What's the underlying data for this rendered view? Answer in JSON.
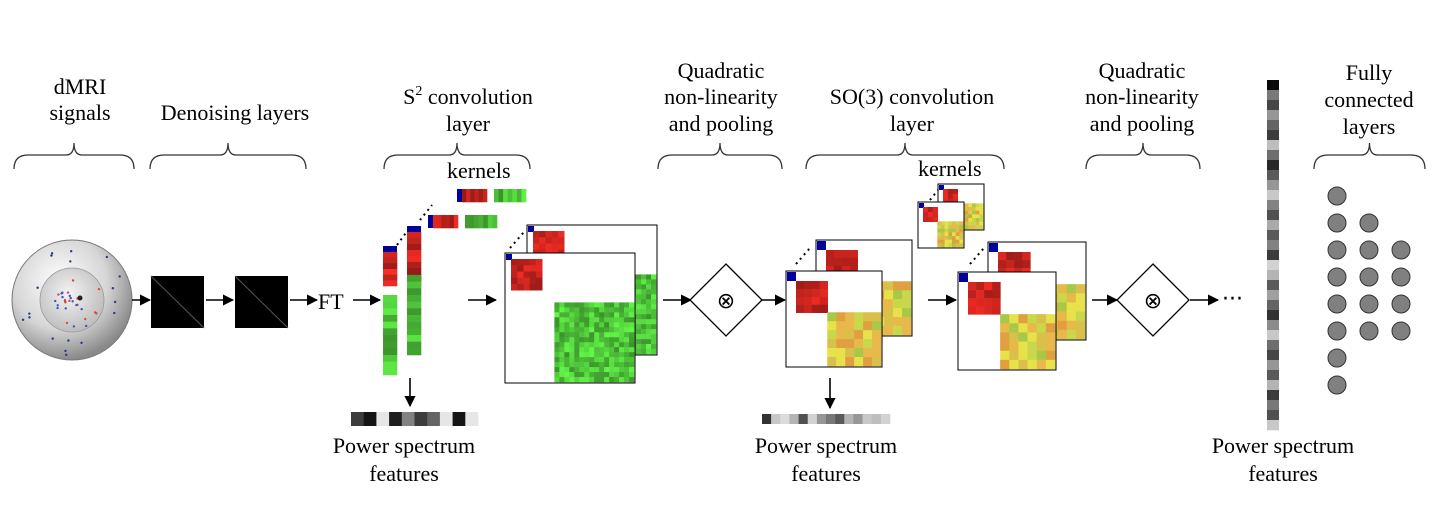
{
  "labels": {
    "dmri_line1": "dMRI",
    "dmri_line2": "signals",
    "denoising": "Denoising layers",
    "s2_conv_line1_base": "S",
    "s2_conv_line1_sup": "2",
    "s2_conv_line1_rest": " convolution",
    "s2_conv_line2": "layer",
    "quad1_line1": "Quadratic",
    "quad1_line2": "non-linearity",
    "quad1_line3": "and pooling",
    "so3_line1": "SO(3) convolution",
    "so3_line2": "layer",
    "quad2_line1": "Quadratic",
    "quad2_line2": "non-linearity",
    "quad2_line3": "and pooling",
    "fc_line1": "Fully",
    "fc_line2": "connected",
    "fc_line3": "layers",
    "kernels_1": "kernels",
    "kernels_2": "kernels",
    "ft": "FT",
    "otimes_1": "⊗",
    "otimes_2": "⊗",
    "ellipsis": "···",
    "ps1_line1": "Power spectrum",
    "ps1_line2": "features",
    "ps2_line1": "Power spectrum",
    "ps2_line2": "features",
    "ps3_line1": "Power spectrum",
    "ps3_line2": "features"
  },
  "colors": {
    "red": "#c8241e",
    "green": "#4fc53a",
    "blue": "#00009a",
    "yellow": "#e8e24a",
    "black": "#000000"
  },
  "fc_layers": [
    8,
    5,
    4
  ]
}
